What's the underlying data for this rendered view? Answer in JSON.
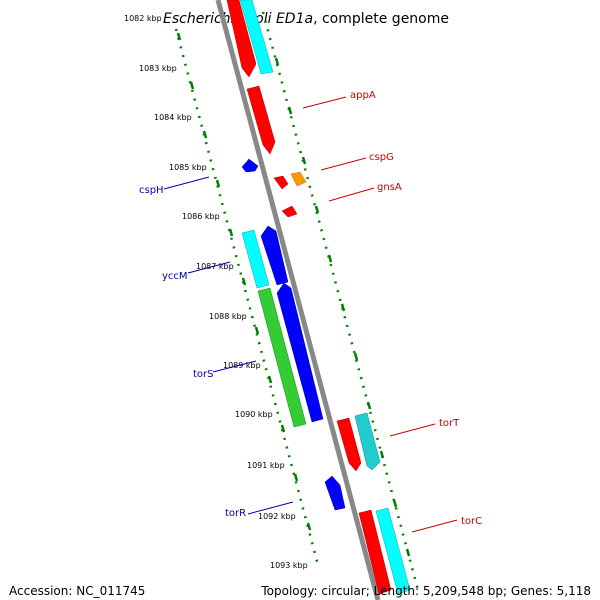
{
  "title": {
    "organism": "Escherichia coli ED1a",
    "suffix": ", complete genome"
  },
  "footer": {
    "accession": "Accession: NC_011745",
    "topology": "Topology: circular; Length: 5,209,548 bp; Genes: 5,118"
  },
  "ticks": [
    "1082 kbp",
    "1083 kbp",
    "1084 kbp",
    "1085 kbp",
    "1086 kbp",
    "1087 kbp",
    "1088 kbp",
    "1089 kbp",
    "1090 kbp",
    "1091 kbp",
    "1092 kbp",
    "1093 kbp"
  ],
  "labels_right": [
    "appA",
    "cspG",
    "gnsA",
    "torT",
    "torC"
  ],
  "labels_left": [
    "cspH",
    "yccM",
    "torS",
    "torR"
  ],
  "colors": {
    "red": "#ff0000",
    "cyan": "#00ffff",
    "blue": "#0000ff",
    "green": "#33cc33",
    "orange": "#ff9900",
    "backbone": "#888888",
    "ruler": "#008000",
    "label_right": "#cc0000",
    "label_left": "#0000aa"
  }
}
